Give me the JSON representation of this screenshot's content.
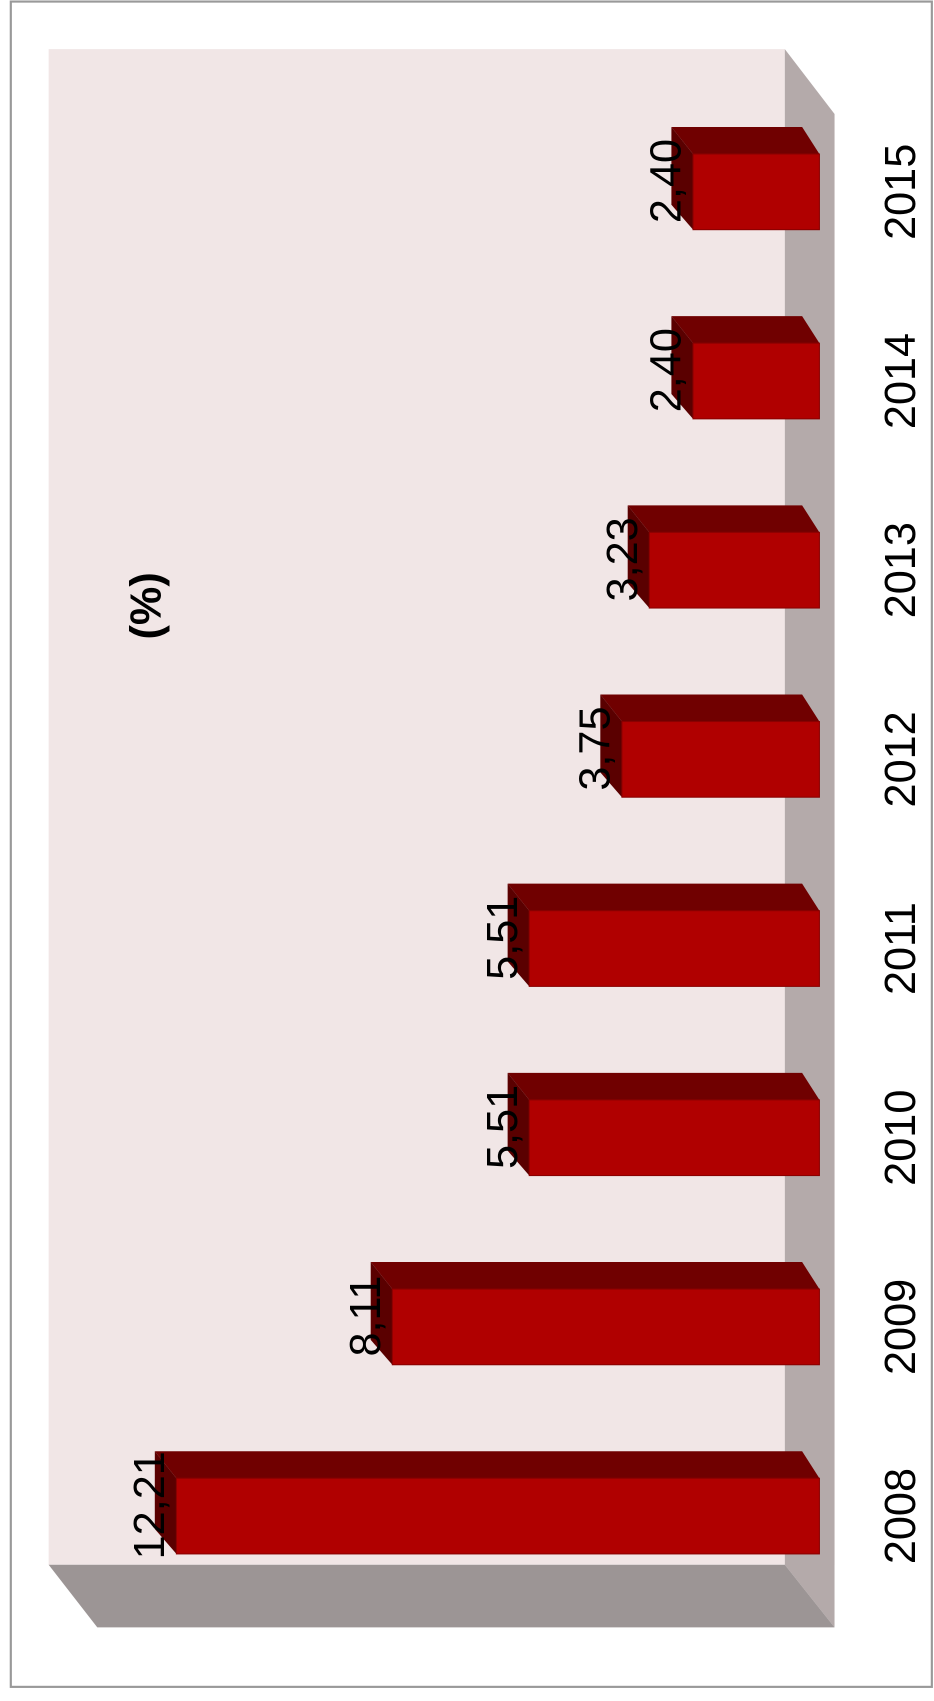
{
  "chart_data": {
    "type": "bar",
    "orientation": "rotated",
    "title": "(%)",
    "categories": [
      "2008",
      "2009",
      "2010",
      "2011",
      "2012",
      "2013",
      "2014",
      "2015"
    ],
    "values": [
      12.21,
      8.11,
      5.51,
      5.51,
      3.75,
      3.23,
      2.4,
      2.4
    ],
    "value_labels": [
      "12,21",
      "8,11",
      "5,51",
      "5,51",
      "3,75",
      "3,23",
      "2,40",
      "2,40"
    ],
    "color": "#b00000",
    "ylim": [
      0,
      14
    ]
  }
}
